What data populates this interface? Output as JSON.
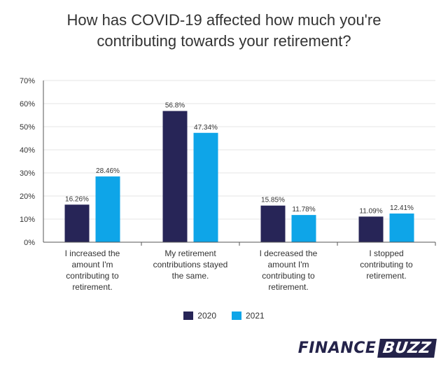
{
  "title_lines": [
    "How has COVID-19 affected how much you're",
    "contributing towards your retirement?"
  ],
  "chart_data": {
    "type": "bar",
    "title": "How has COVID-19 affected how much you're contributing towards your retirement?",
    "categories": [
      [
        "I increased the",
        "amount I'm",
        "contributing to",
        "retirement."
      ],
      [
        "My retirement",
        "contributions stayed",
        "the same."
      ],
      [
        "I decreased the",
        "amount I'm",
        "contributing to",
        "retirement."
      ],
      [
        "I stopped",
        "contributing to",
        "retirement."
      ]
    ],
    "series": [
      {
        "name": "2020",
        "color": "#272557",
        "values": [
          16.26,
          56.8,
          15.85,
          11.09
        ],
        "labels": [
          "16.26%",
          "56.8%",
          "15.85%",
          "11.09%"
        ]
      },
      {
        "name": "2021",
        "color": "#0ea5e8",
        "values": [
          28.46,
          47.34,
          11.78,
          12.41
        ],
        "labels": [
          "28.46%",
          "47.34%",
          "11.78%",
          "12.41%"
        ]
      }
    ],
    "ylim": [
      0,
      70
    ],
    "yticks": [
      0,
      10,
      20,
      30,
      40,
      50,
      60,
      70
    ],
    "ytick_labels": [
      "0%",
      "10%",
      "20%",
      "30%",
      "40%",
      "50%",
      "60%",
      "70%"
    ],
    "grid": true,
    "legend_position": "bottom-center"
  },
  "legend": [
    {
      "label": "2020",
      "color": "#272557"
    },
    {
      "label": "2021",
      "color": "#0ea5e8"
    }
  ],
  "logo": {
    "part1": "FINANCE",
    "part2": "BUZZ"
  }
}
